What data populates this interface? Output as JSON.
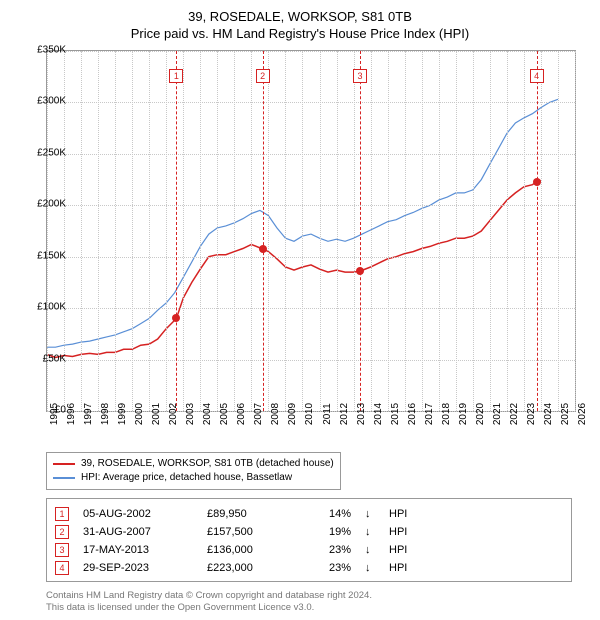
{
  "title_line1": "39, ROSEDALE, WORKSOP, S81 0TB",
  "title_line2": "Price paid vs. HM Land Registry's House Price Index (HPI)",
  "chart": {
    "type": "line",
    "x_min": 1995,
    "x_max": 2026,
    "y_min": 0,
    "y_max": 350000,
    "y_ticks": [
      0,
      50000,
      100000,
      150000,
      200000,
      250000,
      300000,
      350000
    ],
    "y_tick_labels": [
      "£0",
      "£50K",
      "£100K",
      "£150K",
      "£200K",
      "£250K",
      "£300K",
      "£350K"
    ],
    "x_ticks": [
      1995,
      1996,
      1997,
      1998,
      1999,
      2000,
      2001,
      2002,
      2003,
      2004,
      2005,
      2006,
      2007,
      2008,
      2009,
      2010,
      2011,
      2012,
      2013,
      2014,
      2015,
      2016,
      2017,
      2018,
      2019,
      2020,
      2021,
      2022,
      2023,
      2024,
      2025,
      2026
    ],
    "background_color": "#ffffff",
    "grid_color": "#c8c8c8",
    "border_color": "#999999",
    "axis_font_size": 10,
    "series": [
      {
        "id": "property",
        "name": "39, ROSEDALE, WORKSOP, S81 0TB (detached house)",
        "color": "#d62222",
        "line_width": 1.5,
        "points": [
          [
            1995.0,
            55000
          ],
          [
            1995.5,
            52000
          ],
          [
            1996.0,
            54000
          ],
          [
            1996.5,
            53000
          ],
          [
            1997.0,
            55000
          ],
          [
            1997.5,
            56000
          ],
          [
            1998.0,
            55000
          ],
          [
            1998.5,
            57000
          ],
          [
            1999.0,
            57000
          ],
          [
            1999.5,
            60000
          ],
          [
            2000.0,
            60000
          ],
          [
            2000.5,
            64000
          ],
          [
            2001.0,
            65000
          ],
          [
            2001.5,
            70000
          ],
          [
            2002.0,
            80000
          ],
          [
            2002.6,
            89950
          ],
          [
            2003.0,
            110000
          ],
          [
            2003.5,
            125000
          ],
          [
            2004.0,
            138000
          ],
          [
            2004.5,
            150000
          ],
          [
            2005.0,
            152000
          ],
          [
            2005.5,
            152000
          ],
          [
            2006.0,
            155000
          ],
          [
            2006.5,
            158000
          ],
          [
            2007.0,
            162000
          ],
          [
            2007.66,
            157500
          ],
          [
            2008.0,
            155000
          ],
          [
            2008.5,
            148000
          ],
          [
            2009.0,
            140000
          ],
          [
            2009.5,
            137000
          ],
          [
            2010.0,
            140000
          ],
          [
            2010.5,
            142000
          ],
          [
            2011.0,
            138000
          ],
          [
            2011.5,
            135000
          ],
          [
            2012.0,
            137000
          ],
          [
            2012.5,
            135000
          ],
          [
            2013.0,
            135000
          ],
          [
            2013.38,
            136000
          ],
          [
            2014.0,
            140000
          ],
          [
            2014.5,
            144000
          ],
          [
            2015.0,
            148000
          ],
          [
            2015.5,
            150000
          ],
          [
            2016.0,
            153000
          ],
          [
            2016.5,
            155000
          ],
          [
            2017.0,
            158000
          ],
          [
            2017.5,
            160000
          ],
          [
            2018.0,
            163000
          ],
          [
            2018.5,
            165000
          ],
          [
            2019.0,
            168000
          ],
          [
            2019.5,
            168000
          ],
          [
            2020.0,
            170000
          ],
          [
            2020.5,
            175000
          ],
          [
            2021.0,
            185000
          ],
          [
            2021.5,
            195000
          ],
          [
            2022.0,
            205000
          ],
          [
            2022.5,
            212000
          ],
          [
            2023.0,
            218000
          ],
          [
            2023.5,
            220000
          ],
          [
            2023.75,
            223000
          ],
          [
            2024.0,
            224000
          ]
        ]
      },
      {
        "id": "hpi",
        "name": "HPI: Average price, detached house, Bassetlaw",
        "color": "#5a8fd6",
        "line_width": 1.2,
        "points": [
          [
            1995.0,
            62000
          ],
          [
            1995.5,
            62000
          ],
          [
            1996.0,
            64000
          ],
          [
            1996.5,
            65000
          ],
          [
            1997.0,
            67000
          ],
          [
            1997.5,
            68000
          ],
          [
            1998.0,
            70000
          ],
          [
            1998.5,
            72000
          ],
          [
            1999.0,
            74000
          ],
          [
            1999.5,
            77000
          ],
          [
            2000.0,
            80000
          ],
          [
            2000.5,
            85000
          ],
          [
            2001.0,
            90000
          ],
          [
            2001.5,
            98000
          ],
          [
            2002.0,
            105000
          ],
          [
            2002.5,
            115000
          ],
          [
            2003.0,
            130000
          ],
          [
            2003.5,
            145000
          ],
          [
            2004.0,
            160000
          ],
          [
            2004.5,
            172000
          ],
          [
            2005.0,
            178000
          ],
          [
            2005.5,
            180000
          ],
          [
            2006.0,
            183000
          ],
          [
            2006.5,
            187000
          ],
          [
            2007.0,
            192000
          ],
          [
            2007.5,
            195000
          ],
          [
            2008.0,
            190000
          ],
          [
            2008.5,
            178000
          ],
          [
            2009.0,
            168000
          ],
          [
            2009.5,
            165000
          ],
          [
            2010.0,
            170000
          ],
          [
            2010.5,
            172000
          ],
          [
            2011.0,
            168000
          ],
          [
            2011.5,
            165000
          ],
          [
            2012.0,
            167000
          ],
          [
            2012.5,
            165000
          ],
          [
            2013.0,
            168000
          ],
          [
            2013.5,
            172000
          ],
          [
            2014.0,
            176000
          ],
          [
            2014.5,
            180000
          ],
          [
            2015.0,
            184000
          ],
          [
            2015.5,
            186000
          ],
          [
            2016.0,
            190000
          ],
          [
            2016.5,
            193000
          ],
          [
            2017.0,
            197000
          ],
          [
            2017.5,
            200000
          ],
          [
            2018.0,
            205000
          ],
          [
            2018.5,
            208000
          ],
          [
            2019.0,
            212000
          ],
          [
            2019.5,
            212000
          ],
          [
            2020.0,
            215000
          ],
          [
            2020.5,
            225000
          ],
          [
            2021.0,
            240000
          ],
          [
            2021.5,
            255000
          ],
          [
            2022.0,
            270000
          ],
          [
            2022.5,
            280000
          ],
          [
            2023.0,
            285000
          ],
          [
            2023.5,
            289000
          ],
          [
            2024.0,
            295000
          ],
          [
            2024.5,
            300000
          ],
          [
            2025.0,
            303000
          ]
        ]
      }
    ],
    "event_lines": [
      {
        "n": "1",
        "x": 2002.6,
        "color": "#d62222",
        "dot_y": 89950
      },
      {
        "n": "2",
        "x": 2007.66,
        "color": "#d62222",
        "dot_y": 157500
      },
      {
        "n": "3",
        "x": 2013.38,
        "color": "#d62222",
        "dot_y": 136000
      },
      {
        "n": "4",
        "x": 2023.75,
        "color": "#d62222",
        "dot_y": 223000
      }
    ],
    "marker_y_offset": 18
  },
  "legend": {
    "rows": [
      {
        "color": "#d62222",
        "label": "39, ROSEDALE, WORKSOP, S81 0TB (detached house)"
      },
      {
        "color": "#5a8fd6",
        "label": "HPI: Average price, detached house, Bassetlaw"
      }
    ]
  },
  "events": [
    {
      "n": "1",
      "date": "05-AUG-2002",
      "price": "£89,950",
      "pct": "14%",
      "arrow": "↓",
      "hpi": "HPI",
      "color": "#d62222"
    },
    {
      "n": "2",
      "date": "31-AUG-2007",
      "price": "£157,500",
      "pct": "19%",
      "arrow": "↓",
      "hpi": "HPI",
      "color": "#d62222"
    },
    {
      "n": "3",
      "date": "17-MAY-2013",
      "price": "£136,000",
      "pct": "23%",
      "arrow": "↓",
      "hpi": "HPI",
      "color": "#d62222"
    },
    {
      "n": "4",
      "date": "29-SEP-2023",
      "price": "£223,000",
      "pct": "23%",
      "arrow": "↓",
      "hpi": "HPI",
      "color": "#d62222"
    }
  ],
  "footer": {
    "line1": "Contains HM Land Registry data © Crown copyright and database right 2024.",
    "line2": "This data is licensed under the Open Government Licence v3.0."
  }
}
